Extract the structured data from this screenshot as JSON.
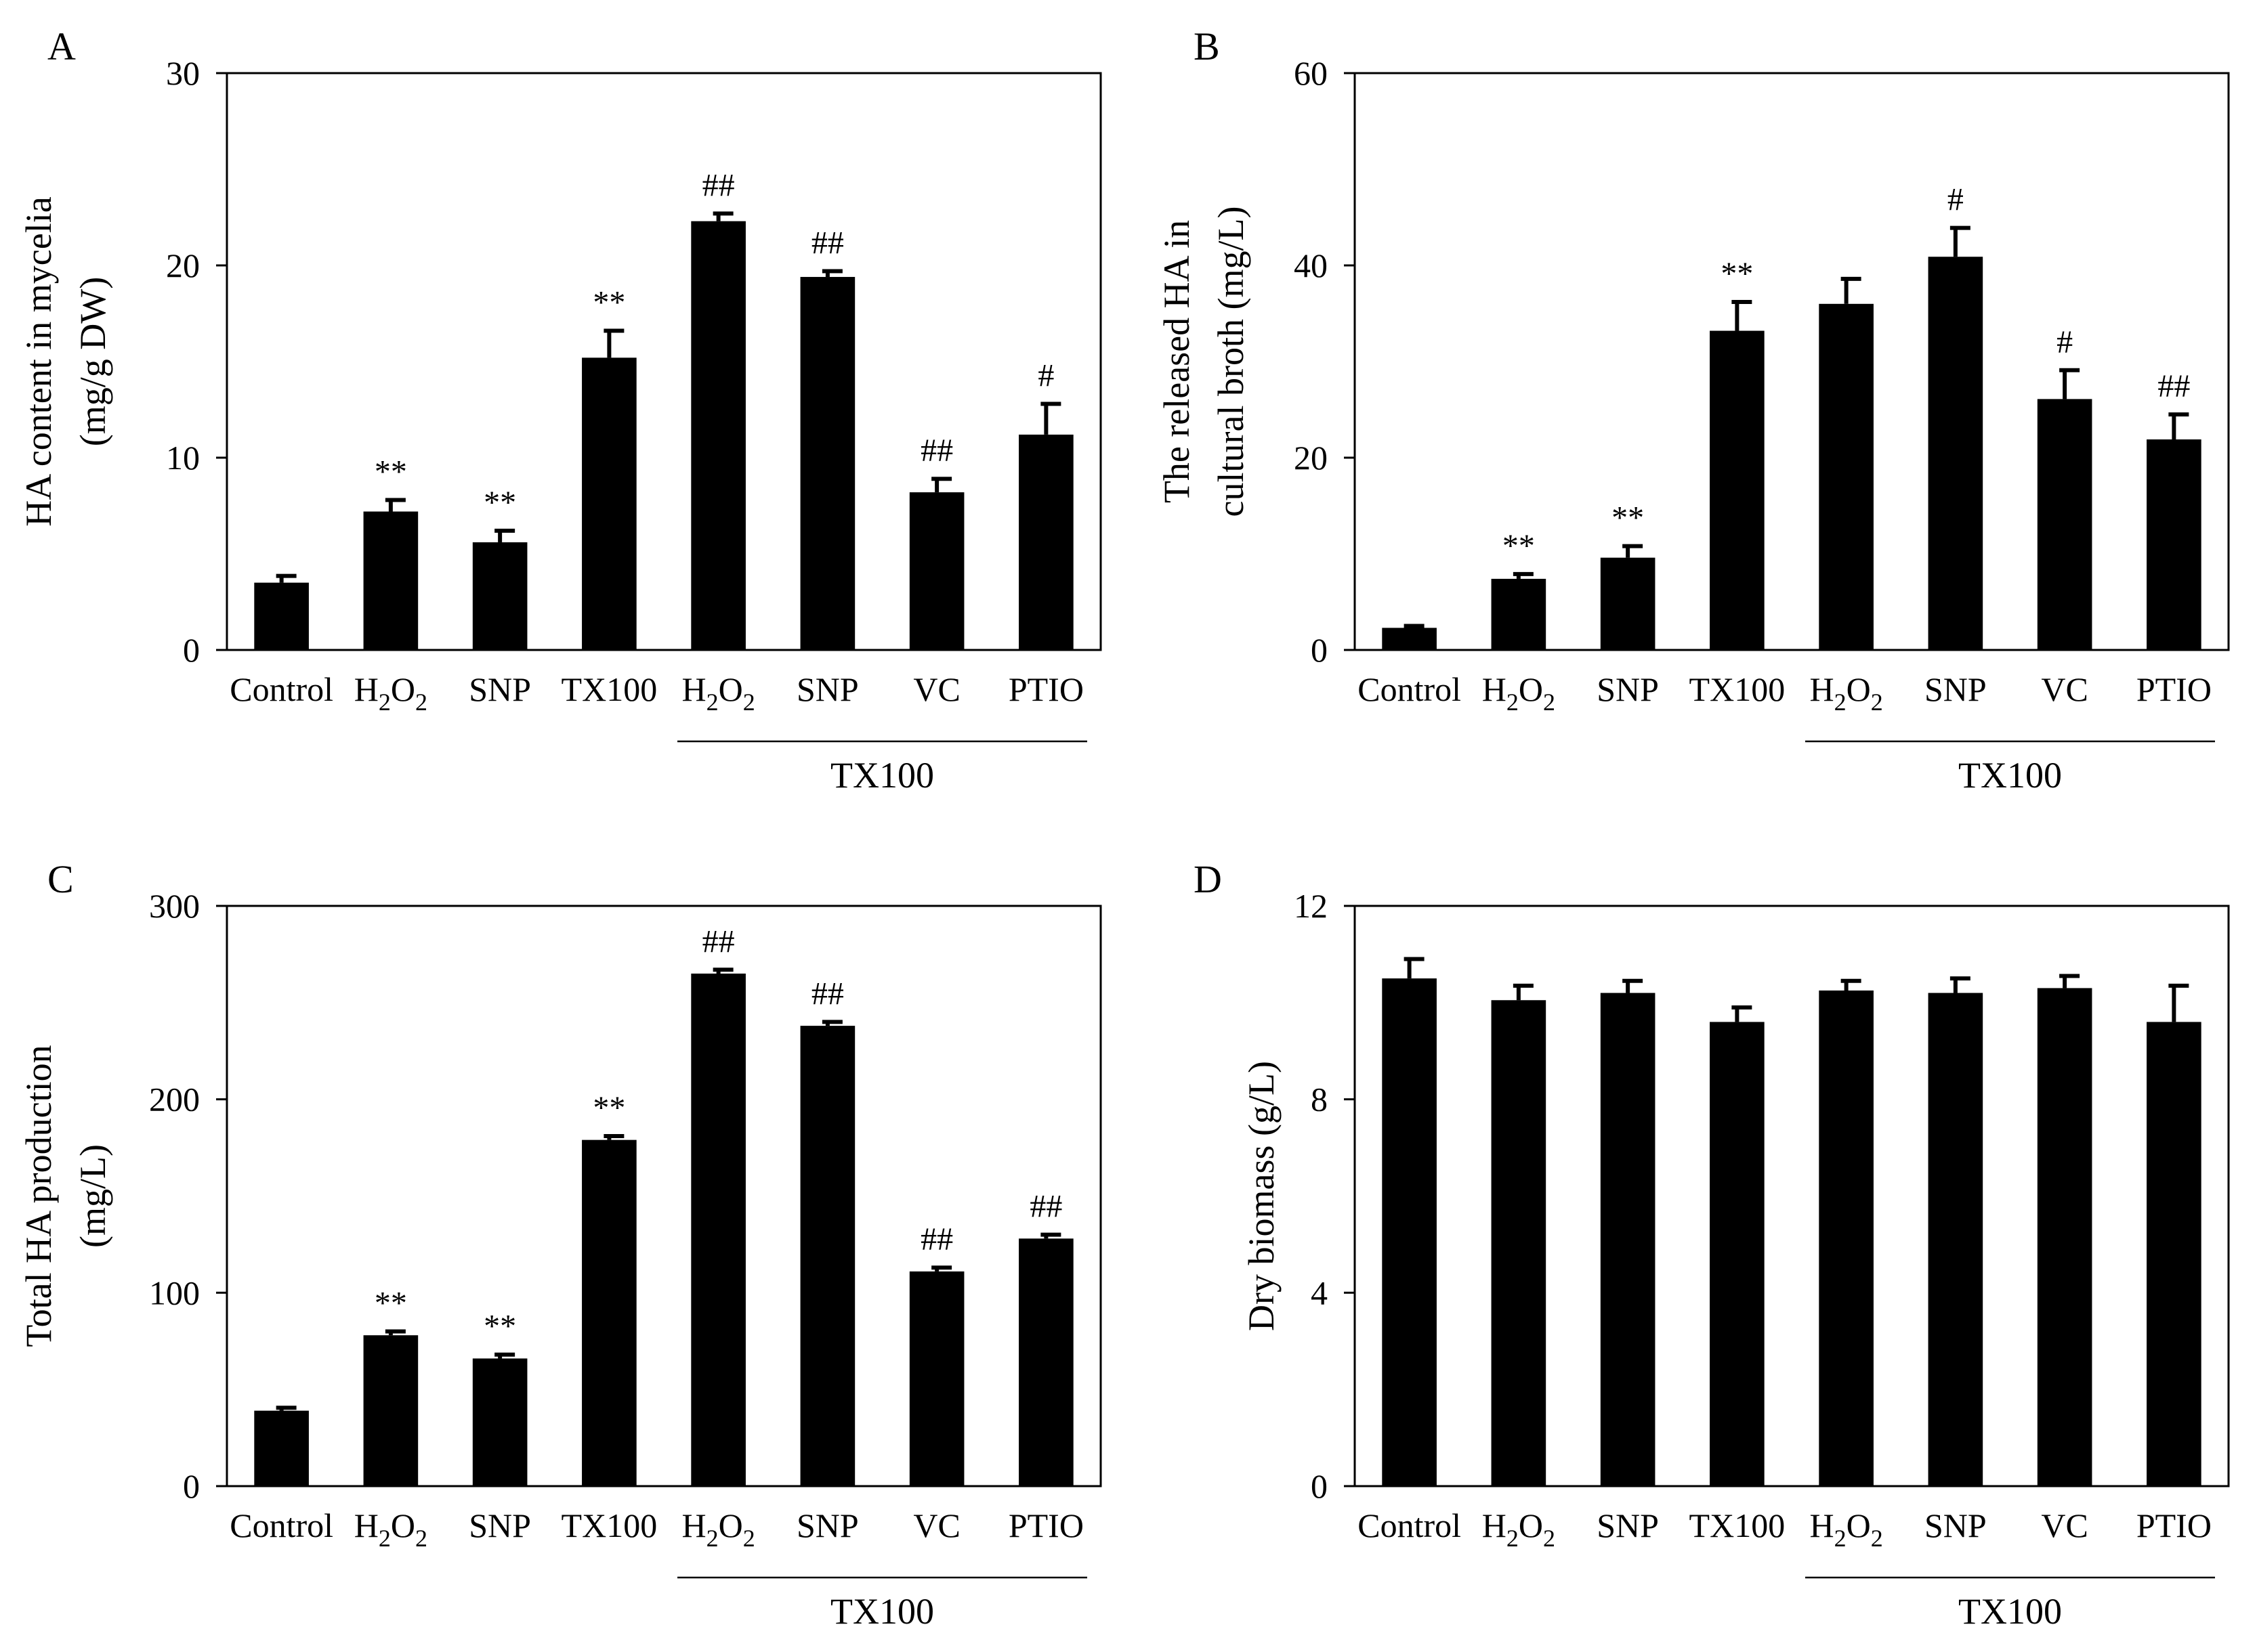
{
  "chart_data": [
    {
      "panel": "A",
      "type": "bar",
      "categories": [
        "Control",
        "H2O2",
        "SNP",
        "TX100",
        "H2O2",
        "SNP",
        "VC",
        "PTIO"
      ],
      "values": [
        3.5,
        7.2,
        5.6,
        15.2,
        22.3,
        19.4,
        8.2,
        11.2
      ],
      "errors": [
        0.35,
        0.6,
        0.6,
        1.4,
        0.4,
        0.3,
        0.7,
        1.6
      ],
      "annotations": [
        "",
        "**",
        "**",
        "**",
        "##",
        "##",
        "##",
        "#"
      ],
      "ylabel": [
        "HA content in mycelia",
        "(mg/g DW)"
      ],
      "ylim": [
        0,
        30
      ],
      "yticks": [
        0,
        10,
        20,
        30
      ],
      "group_label": "TX100"
    },
    {
      "panel": "B",
      "type": "bar",
      "categories": [
        "Control",
        "H2O2",
        "SNP",
        "TX100",
        "H2O2",
        "SNP",
        "VC",
        "PTIO"
      ],
      "values": [
        2.3,
        7.4,
        9.6,
        33.2,
        36.0,
        40.9,
        26.1,
        21.9
      ],
      "errors": [
        0.2,
        0.5,
        1.2,
        3.0,
        2.6,
        3.0,
        3.0,
        2.6
      ],
      "annotations": [
        "",
        "**",
        "**",
        "**",
        "",
        "#",
        "#",
        "##"
      ],
      "ylabel": [
        "The released  HA in",
        "cultural broth (mg/L)"
      ],
      "ylim": [
        0,
        60
      ],
      "yticks": [
        0,
        20,
        40,
        60
      ],
      "group_label": "TX100"
    },
    {
      "panel": "C",
      "type": "bar",
      "categories": [
        "Control",
        "H2O2",
        "SNP",
        "TX100",
        "H2O2",
        "SNP",
        "VC",
        "PTIO"
      ],
      "values": [
        39,
        78,
        66,
        179,
        265,
        238,
        111,
        128
      ],
      "errors": [
        1.5,
        2,
        2,
        2,
        2,
        2,
        2,
        2
      ],
      "annotations": [
        "",
        "**",
        "**",
        "**",
        "##",
        "##",
        "##",
        "##"
      ],
      "ylabel": [
        "Total  HA production",
        "(mg/L)"
      ],
      "ylim": [
        0,
        300
      ],
      "yticks": [
        0,
        100,
        200,
        300
      ],
      "group_label": "TX100"
    },
    {
      "panel": "D",
      "type": "bar",
      "categories": [
        "Control",
        "H2O2",
        "SNP",
        "TX100",
        "H2O2",
        "SNP",
        "VC",
        "PTIO"
      ],
      "values": [
        10.5,
        10.05,
        10.2,
        9.6,
        10.25,
        10.2,
        10.3,
        9.6
      ],
      "errors": [
        0.4,
        0.3,
        0.25,
        0.3,
        0.2,
        0.3,
        0.25,
        0.75
      ],
      "annotations": [
        "",
        "",
        "",
        "",
        "",
        "",
        "",
        ""
      ],
      "ylabel": [
        "Dry biomass (g/L)"
      ],
      "ylim": [
        0,
        12
      ],
      "yticks": [
        0,
        4,
        8,
        12
      ],
      "group_label": "TX100"
    }
  ]
}
